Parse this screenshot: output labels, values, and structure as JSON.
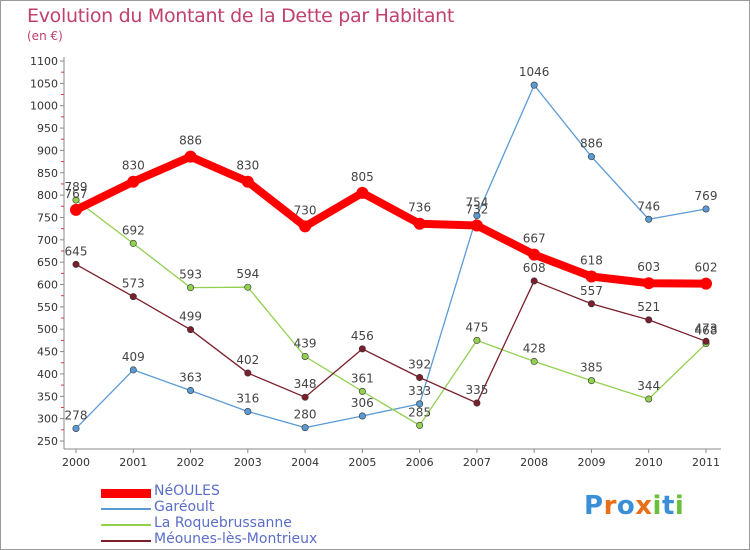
{
  "chart_data": {
    "type": "line",
    "title": "Evolution du Montant de la Dette par Habitant",
    "unit_label": "(en €)",
    "x": [
      "2000",
      "2001",
      "2002",
      "2003",
      "2004",
      "2005",
      "2006",
      "2007",
      "2008",
      "2009",
      "2010",
      "2011"
    ],
    "ylim": [
      250,
      1100
    ],
    "yticks": [
      250,
      300,
      350,
      400,
      450,
      500,
      550,
      600,
      650,
      700,
      750,
      800,
      850,
      900,
      950,
      1000,
      1050,
      1100
    ],
    "grid": false,
    "legend_position": "bottom-left",
    "series": [
      {
        "name": "NéOULES",
        "color": "#ff0000",
        "emphasis": true,
        "values": [
          767,
          830,
          886,
          830,
          730,
          805,
          736,
          732,
          667,
          618,
          603,
          602
        ]
      },
      {
        "name": "Garéoult",
        "color": "#5b9bd5",
        "emphasis": false,
        "values": [
          278,
          409,
          363,
          316,
          280,
          306,
          333,
          754,
          1046,
          886,
          746,
          769
        ]
      },
      {
        "name": "La Roquebrussanne",
        "color": "#92d050",
        "emphasis": false,
        "values": [
          789,
          692,
          593,
          594,
          439,
          361,
          285,
          475,
          428,
          385,
          344,
          468
        ]
      },
      {
        "name": "Méounes-lès-Montrieux",
        "color": "#7a1f2b",
        "emphasis": false,
        "values": [
          645,
          573,
          499,
          402,
          348,
          456,
          392,
          335,
          608,
          557,
          521,
          473
        ]
      }
    ]
  },
  "logo": {
    "letters": [
      "P",
      "r",
      "o",
      "x",
      "i",
      "t",
      "i"
    ],
    "colors": [
      "#3b8fd6",
      "#e8701a",
      "#3b8fd6",
      "#e8701a",
      "#6abf3c",
      "#3b8fd6",
      "#6abf3c"
    ]
  }
}
